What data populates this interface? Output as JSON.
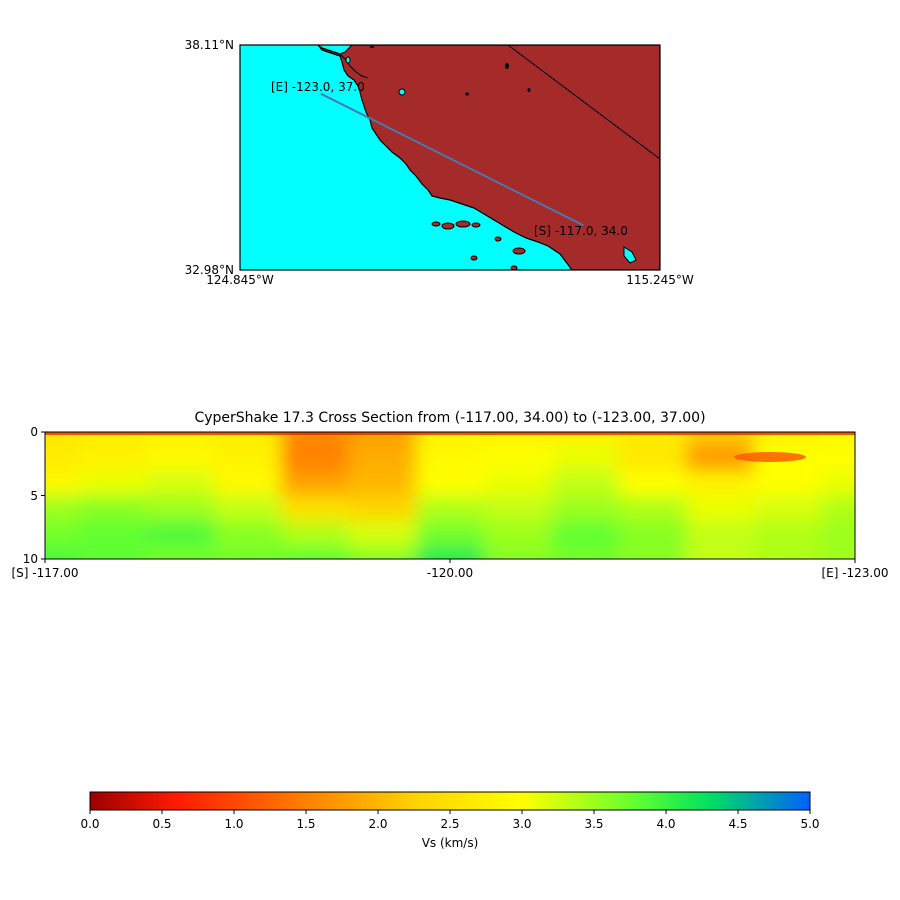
{
  "map": {
    "lat_top_label": "38.11°N",
    "lat_bottom_label": "32.98°N",
    "lon_left_label": "124.845°W",
    "lon_right_label": "115.245°W",
    "extent": {
      "lon_min": -124.845,
      "lon_max": -115.245,
      "lat_min": 32.98,
      "lat_max": 38.11
    },
    "start_point": {
      "label": "[S] -117.0, 34.0",
      "lon": -117.0,
      "lat": 34.0
    },
    "end_point": {
      "label": "[E] -123.0, 37.0",
      "lon": -123.0,
      "lat": 37.0
    },
    "colors": {
      "ocean": "#00ffff",
      "land": "#a52a2a",
      "transect": "#4a78b0",
      "coast": "#000000"
    }
  },
  "section": {
    "title": "CyperShake 17.3 Cross Section from (-117.00, 34.00) to (-123.00, 37.00)",
    "x_ticks": [
      {
        "label": "[S] -117.00",
        "value": -117.0
      },
      {
        "label": "-120.00",
        "value": -120.0
      },
      {
        "label": "[E] -123.00",
        "value": -123.0
      }
    ],
    "y_ticks": [
      {
        "label": "0",
        "value": 0
      },
      {
        "label": "5",
        "value": 5
      },
      {
        "label": "10",
        "value": 10
      }
    ]
  },
  "colorbar": {
    "label": "Vs (km/s)",
    "ticks": [
      "0.0",
      "0.5",
      "1.0",
      "1.5",
      "2.0",
      "2.5",
      "3.0",
      "3.5",
      "4.0",
      "4.5",
      "5.0"
    ],
    "range": [
      0,
      5
    ],
    "colors": [
      "#9b0000",
      "#ff1a00",
      "#ff8000",
      "#ffd200",
      "#ffff00",
      "#60ff30",
      "#00e060",
      "#0060ff"
    ]
  },
  "chart_data": [
    {
      "type": "heatmap",
      "title": "",
      "xlabel": "",
      "ylabel": "",
      "x": [
        -124.845,
        -115.245
      ],
      "y": [
        32.98,
        38.11
      ],
      "series": [
        {
          "values": [
            [
              -117.0,
              34.0
            ],
            [
              -123.0,
              37.0
            ]
          ]
        }
      ]
    },
    {
      "type": "heatmap",
      "title": "CyperShake 17.3 Cross Section from (-117.00, 34.00) to (-123.00, 37.00)",
      "xlabel": "",
      "ylabel": "",
      "x": [
        -117.0,
        -117.5,
        -118.0,
        -118.5,
        -119.0,
        -119.5,
        -120.0,
        -120.5,
        -121.0,
        -121.5,
        -122.0,
        -122.5,
        -123.0
      ],
      "y": [
        0,
        2,
        4,
        6,
        8,
        10
      ],
      "zlim": [
        0,
        5
      ],
      "z": [
        [
          2.6,
          2.7,
          2.8,
          2.7,
          1.6,
          1.8,
          2.8,
          2.8,
          2.8,
          2.7,
          2.2,
          2.8,
          2.9
        ],
        [
          2.7,
          2.8,
          2.9,
          2.8,
          1.5,
          1.9,
          2.9,
          3.0,
          3.1,
          2.6,
          1.7,
          3.0,
          3.0
        ],
        [
          2.9,
          3.1,
          3.2,
          2.9,
          1.8,
          2.0,
          3.0,
          3.1,
          3.3,
          3.0,
          2.8,
          3.0,
          3.1
        ],
        [
          3.5,
          3.6,
          3.5,
          3.3,
          2.5,
          2.3,
          3.4,
          3.3,
          3.5,
          3.4,
          3.1,
          3.2,
          3.4
        ],
        [
          3.7,
          3.8,
          3.9,
          3.6,
          3.4,
          3.2,
          3.7,
          3.5,
          3.8,
          3.6,
          3.3,
          3.4,
          3.5
        ],
        [
          3.9,
          3.8,
          3.7,
          3.7,
          3.8,
          3.6,
          4.1,
          3.6,
          3.7,
          3.6,
          3.3,
          3.4,
          3.5
        ]
      ]
    }
  ]
}
